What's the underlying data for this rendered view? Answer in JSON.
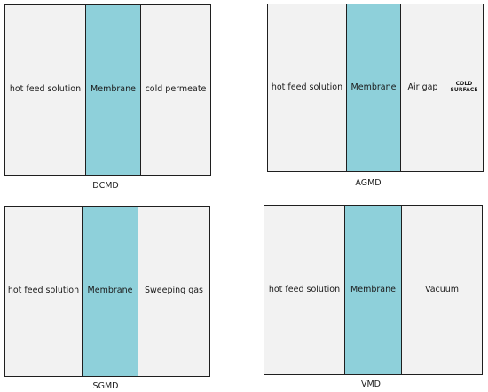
{
  "diagrams": [
    {
      "caption": "DCMD",
      "segments": [
        {
          "label": "hot feed solution",
          "kind": "feed"
        },
        {
          "label": "Membrane",
          "kind": "membrane"
        },
        {
          "label": "cold permeate",
          "kind": "permeate"
        }
      ]
    },
    {
      "caption": "AGMD",
      "segments": [
        {
          "label": "hot feed solution",
          "kind": "feed"
        },
        {
          "label": "Membrane",
          "kind": "membrane"
        },
        {
          "label": "Air gap",
          "kind": "gap"
        },
        {
          "label": "COLD SURFACE",
          "kind": "surface"
        }
      ]
    },
    {
      "caption": "SGMD",
      "segments": [
        {
          "label": "hot feed solution",
          "kind": "feed"
        },
        {
          "label": "Membrane",
          "kind": "membrane"
        },
        {
          "label": "Sweeping gas",
          "kind": "permeate"
        }
      ]
    },
    {
      "caption": "VMD",
      "segments": [
        {
          "label": "hot feed solution",
          "kind": "feed"
        },
        {
          "label": "Membrane",
          "kind": "membrane"
        },
        {
          "label": "Vacuum",
          "kind": "permeate"
        }
      ]
    }
  ],
  "colors": {
    "membrane": "#8ed0da",
    "compartment": "#f2f2f2",
    "border": "#1f1f1f"
  }
}
